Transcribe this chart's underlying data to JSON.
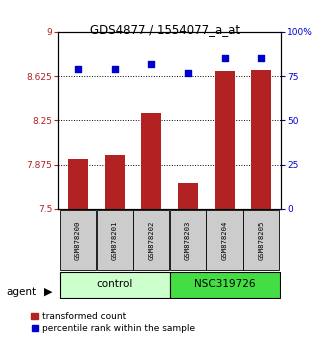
{
  "title": "GDS4877 / 1554077_a_at",
  "categories": [
    "GSM878200",
    "GSM878201",
    "GSM878202",
    "GSM878203",
    "GSM878204",
    "GSM878205"
  ],
  "bar_values": [
    7.92,
    7.96,
    8.31,
    7.72,
    8.67,
    8.68
  ],
  "percentile_values": [
    79,
    79,
    82,
    77,
    85,
    85
  ],
  "bar_color": "#b22222",
  "dot_color": "#0000cc",
  "ylim_left": [
    7.5,
    9.0
  ],
  "ylim_right": [
    0,
    100
  ],
  "yticks_left": [
    7.5,
    7.875,
    8.25,
    8.625,
    9.0
  ],
  "ytick_labels_left": [
    "7.5",
    "7.875",
    "8.25",
    "8.625",
    "9"
  ],
  "yticks_right": [
    0,
    25,
    50,
    75,
    100
  ],
  "ytick_labels_right": [
    "0",
    "25",
    "50",
    "75",
    "100%"
  ],
  "hlines": [
    7.875,
    8.25,
    8.625
  ],
  "control_label": "control",
  "treatment_label": "NSC319726",
  "agent_label": "agent",
  "legend_bar_label": "transformed count",
  "legend_dot_label": "percentile rank within the sample",
  "control_color": "#ccffcc",
  "treatment_color": "#44dd44",
  "group_box_color": "#cccccc",
  "bar_bottom": 7.5,
  "figsize": [
    3.31,
    3.54
  ],
  "dpi": 100
}
